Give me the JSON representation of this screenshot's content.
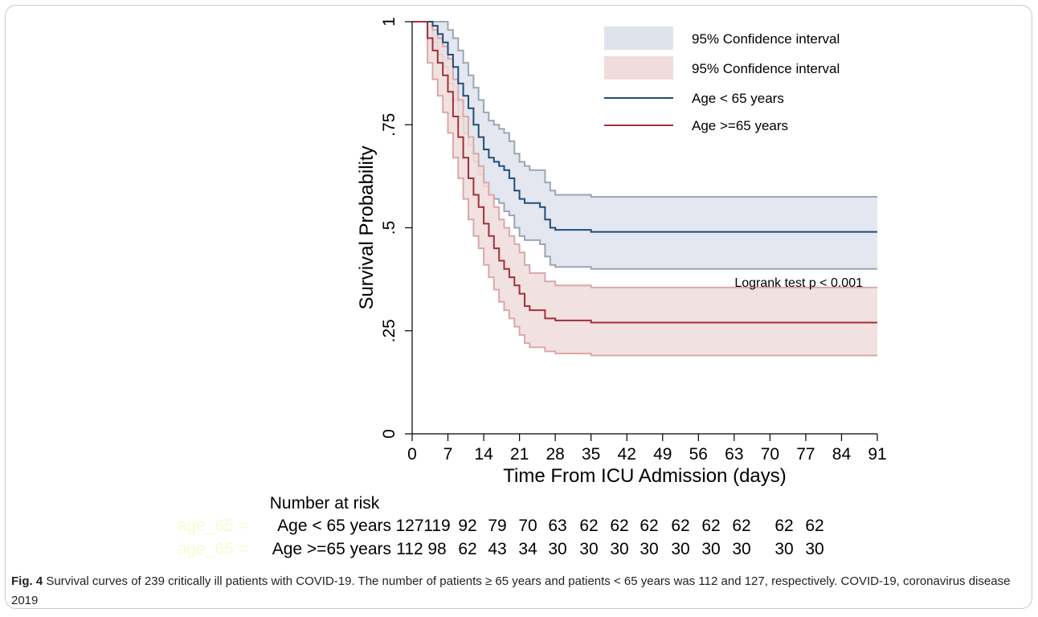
{
  "chart_data": {
    "type": "line",
    "title": "",
    "xlabel": "Time From ICU Admission (days)",
    "ylabel": "Survival Probability",
    "xlim": [
      0,
      91
    ],
    "ylim": [
      0,
      1
    ],
    "x_ticks": [
      0,
      7,
      14,
      21,
      28,
      35,
      42,
      49,
      56,
      63,
      70,
      77,
      84,
      91
    ],
    "y_ticks": [
      {
        "value": 0,
        "label": "0"
      },
      {
        "value": 0.25,
        "label": ".25"
      },
      {
        "value": 0.5,
        "label": ".5"
      },
      {
        "value": 0.75,
        "label": ".75"
      },
      {
        "value": 1,
        "label": "1"
      }
    ],
    "grid": false,
    "legend_position": "top-right",
    "legend": [
      {
        "label": "95% Confidence interval",
        "kind": "band",
        "color": "#dfe3ec",
        "edge": "#9aa6b6"
      },
      {
        "label": "95% Confidence interval",
        "kind": "band",
        "color": "#f0dcdc",
        "edge": "#dba8a8"
      },
      {
        "label": "Age < 65 years",
        "kind": "line",
        "color": "#1f4e79"
      },
      {
        "label": "Age >=65 years",
        "kind": "line",
        "color": "#a0313b"
      }
    ],
    "annotation": "Logrank test p < 0.001",
    "series": [
      {
        "name": "Age < 65 years",
        "color": "#1f4e79",
        "band_color": "#dfe3ec",
        "band_edge": "#9aa6b6",
        "x": [
          0,
          4,
          5,
          6,
          7,
          8,
          9,
          10,
          11,
          12,
          13,
          14,
          15,
          16,
          17,
          18,
          19,
          20,
          21,
          22,
          23,
          25,
          26,
          27,
          28,
          35,
          91
        ],
        "y": [
          1,
          0.99,
          0.97,
          0.95,
          0.92,
          0.89,
          0.85,
          0.82,
          0.79,
          0.75,
          0.72,
          0.69,
          0.67,
          0.66,
          0.65,
          0.64,
          0.62,
          0.59,
          0.57,
          0.56,
          0.56,
          0.55,
          0.52,
          0.5,
          0.495,
          0.49,
          0.49
        ],
        "lower": [
          1,
          0.95,
          0.92,
          0.89,
          0.85,
          0.81,
          0.77,
          0.73,
          0.7,
          0.66,
          0.63,
          0.6,
          0.58,
          0.57,
          0.56,
          0.54,
          0.53,
          0.5,
          0.48,
          0.47,
          0.47,
          0.46,
          0.43,
          0.41,
          0.405,
          0.4,
          0.4
        ],
        "upper": [
          1,
          1,
          1,
          1,
          0.98,
          0.96,
          0.93,
          0.9,
          0.87,
          0.84,
          0.81,
          0.78,
          0.76,
          0.75,
          0.74,
          0.73,
          0.71,
          0.68,
          0.66,
          0.65,
          0.64,
          0.64,
          0.61,
          0.59,
          0.58,
          0.575,
          0.575
        ]
      },
      {
        "name": "Age >=65 years",
        "color": "#a0313b",
        "band_color": "#f0dcdc",
        "band_edge": "#dba8a8",
        "x": [
          0,
          3,
          4,
          5,
          6,
          7,
          8,
          9,
          10,
          11,
          12,
          13,
          14,
          15,
          16,
          17,
          18,
          19,
          20,
          21,
          22,
          23,
          25,
          26,
          28,
          35,
          91
        ],
        "y": [
          1,
          0.96,
          0.93,
          0.9,
          0.87,
          0.83,
          0.77,
          0.72,
          0.67,
          0.62,
          0.58,
          0.55,
          0.51,
          0.48,
          0.45,
          0.42,
          0.4,
          0.38,
          0.36,
          0.34,
          0.31,
          0.3,
          0.3,
          0.28,
          0.275,
          0.27,
          0.27
        ],
        "lower": [
          1,
          0.9,
          0.86,
          0.82,
          0.78,
          0.73,
          0.67,
          0.62,
          0.57,
          0.52,
          0.48,
          0.45,
          0.41,
          0.38,
          0.35,
          0.32,
          0.3,
          0.28,
          0.26,
          0.24,
          0.22,
          0.21,
          0.21,
          0.2,
          0.195,
          0.19,
          0.19
        ],
        "upper": [
          1,
          1,
          0.98,
          0.96,
          0.94,
          0.91,
          0.86,
          0.81,
          0.77,
          0.72,
          0.68,
          0.65,
          0.61,
          0.58,
          0.55,
          0.52,
          0.5,
          0.48,
          0.46,
          0.44,
          0.41,
          0.39,
          0.39,
          0.37,
          0.36,
          0.355,
          0.355
        ]
      }
    ],
    "risk_table": {
      "title": "Number at risk",
      "rows": [
        {
          "ghost_label": "age_65 =",
          "label": "Age < 65 years",
          "values": [
            "127",
            "119",
            "92",
            "79",
            "70",
            "63",
            "62",
            "62",
            "62",
            "62",
            "62",
            "62",
            "62",
            "62"
          ]
        },
        {
          "ghost_label": "age_65 =",
          "label": "Age >=65 years",
          "values": [
            "112",
            "98",
            "62",
            "43",
            "34",
            "30",
            "30",
            "30",
            "30",
            "30",
            "30",
            "30",
            "30",
            "30"
          ]
        }
      ]
    }
  },
  "caption": {
    "figure_label": "Fig. 4",
    "text": " Survival curves of 239 critically ill patients with COVID-19. The number of patients ≥ 65 years and patients < 65 years was 112 and 127, respectively. COVID-19, coronavirus disease 2019"
  }
}
